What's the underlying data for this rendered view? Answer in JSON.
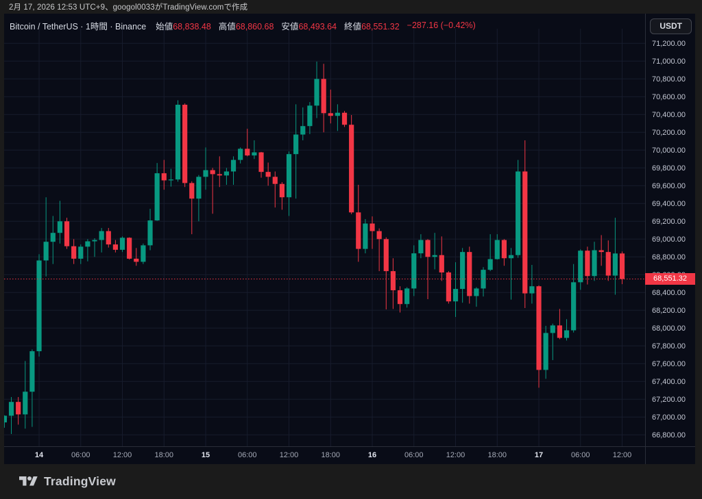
{
  "header": {
    "attribution": "2月 17, 2026 12:53 UTC+9、googol0033がTradingView.comで作成"
  },
  "legend": {
    "title": "Bitcoin / TetherUS · 1時間 · Binance",
    "open_label": "始値",
    "open": "68,838.48",
    "high_label": "高値",
    "high": "68,860.68",
    "low_label": "安値",
    "low": "68,493.64",
    "close_label": "終値",
    "close": "68,551.32",
    "change": "−287.16 (−0.42%)"
  },
  "toolbar": {
    "currency_label": "USDT"
  },
  "price_scale": {
    "last_price_label": "68,551.32"
  },
  "footer": {
    "brand": "TradingView"
  },
  "colors": {
    "up": "#089981",
    "down": "#f23645",
    "chart_bg": "#090c17",
    "outer_bg": "#1b1b1b",
    "grid": "#171c2d",
    "border": "#2a2e39",
    "axis_text": "#c4c8d4",
    "axis_minor": "#a6abb8",
    "axis_major": "#e2e5ee",
    "legend_text": "#d7dbe4"
  },
  "chart_data": {
    "type": "candlestick",
    "symbol": "Bitcoin / TetherUS",
    "exchange": "Binance",
    "interval": "1時間",
    "start_time": "2026-02-13 19:00",
    "interval_hours": 1,
    "last_price": 68551.32,
    "y_axis": {
      "min": 66800,
      "max": 71200,
      "step": 200,
      "decimals": 2
    },
    "x_ticks": [
      {
        "index": 5,
        "label": "14",
        "major": true
      },
      {
        "index": 11,
        "label": "06:00",
        "major": false
      },
      {
        "index": 17,
        "label": "12:00",
        "major": false
      },
      {
        "index": 23,
        "label": "18:00",
        "major": false
      },
      {
        "index": 29,
        "label": "15",
        "major": true
      },
      {
        "index": 35,
        "label": "06:00",
        "major": false
      },
      {
        "index": 41,
        "label": "12:00",
        "major": false
      },
      {
        "index": 47,
        "label": "18:00",
        "major": false
      },
      {
        "index": 53,
        "label": "16",
        "major": true
      },
      {
        "index": 59,
        "label": "06:00",
        "major": false
      },
      {
        "index": 65,
        "label": "12:00",
        "major": false
      },
      {
        "index": 71,
        "label": "18:00",
        "major": false
      },
      {
        "index": 77,
        "label": "17",
        "major": true
      },
      {
        "index": 83,
        "label": "06:00",
        "major": false
      },
      {
        "index": 89,
        "label": "12:00",
        "major": false
      }
    ],
    "candles": [
      [
        66940,
        67020,
        66880,
        67015
      ],
      [
        67015,
        67225,
        66810,
        67170
      ],
      [
        67170,
        67225,
        66915,
        67030
      ],
      [
        67030,
        67630,
        66870,
        67285
      ],
      [
        67285,
        67760,
        66890,
        67740
      ],
      [
        67740,
        68830,
        67680,
        68760
      ],
      [
        68760,
        69470,
        68580,
        68970
      ],
      [
        68970,
        69260,
        68720,
        69070
      ],
      [
        69070,
        69430,
        68950,
        69200
      ],
      [
        69200,
        69240,
        68890,
        68920
      ],
      [
        68920,
        69000,
        68720,
        68780
      ],
      [
        68780,
        68940,
        68720,
        68915
      ],
      [
        68915,
        69000,
        68750,
        68975
      ],
      [
        68975,
        69010,
        68800,
        68990
      ],
      [
        68990,
        69125,
        68850,
        69090
      ],
      [
        69090,
        69125,
        68905,
        68940
      ],
      [
        68940,
        68990,
        68850,
        68880
      ],
      [
        68880,
        69030,
        68855,
        69015
      ],
      [
        69015,
        69020,
        68770,
        68780
      ],
      [
        68780,
        68900,
        68700,
        68745
      ],
      [
        68745,
        68950,
        68720,
        68930
      ],
      [
        68930,
        69340,
        68875,
        69210
      ],
      [
        69210,
        69855,
        69205,
        69740
      ],
      [
        69740,
        69890,
        69555,
        69660
      ],
      [
        69660,
        69790,
        69590,
        69670
      ],
      [
        69670,
        70560,
        69645,
        70510
      ],
      [
        70510,
        70525,
        69585,
        69630
      ],
      [
        69630,
        69650,
        69055,
        69455
      ],
      [
        69455,
        69720,
        69200,
        69700
      ],
      [
        69700,
        70030,
        69555,
        69775
      ],
      [
        69775,
        69800,
        69285,
        69730
      ],
      [
        69730,
        69930,
        69585,
        69715
      ],
      [
        69715,
        69800,
        69610,
        69760
      ],
      [
        69760,
        69930,
        69610,
        69890
      ],
      [
        69890,
        70030,
        69850,
        70015
      ],
      [
        70015,
        70240,
        69930,
        69940
      ],
      [
        69940,
        70110,
        69900,
        69975
      ],
      [
        69975,
        69980,
        69690,
        69755
      ],
      [
        69755,
        69860,
        69600,
        69700
      ],
      [
        69700,
        69760,
        69355,
        69620
      ],
      [
        69620,
        69640,
        69330,
        69470
      ],
      [
        69470,
        69985,
        69260,
        69955
      ],
      [
        69955,
        70515,
        69455,
        70175
      ],
      [
        70175,
        70480,
        70110,
        70270
      ],
      [
        70270,
        70540,
        70180,
        70500
      ],
      [
        70500,
        70995,
        70360,
        70800
      ],
      [
        70800,
        70970,
        70200,
        70415
      ],
      [
        70415,
        70680,
        70300,
        70385
      ],
      [
        70385,
        70515,
        70215,
        70420
      ],
      [
        70420,
        70440,
        70260,
        70285
      ],
      [
        70285,
        70395,
        69280,
        69300
      ],
      [
        69300,
        69610,
        68745,
        68890
      ],
      [
        68890,
        69225,
        68840,
        69175
      ],
      [
        69175,
        69255,
        68890,
        69090
      ],
      [
        69090,
        69120,
        68640,
        69000
      ],
      [
        69000,
        69020,
        68210,
        68640
      ],
      [
        68640,
        68785,
        68215,
        68425
      ],
      [
        68425,
        68470,
        68175,
        68270
      ],
      [
        68270,
        68460,
        68230,
        68445
      ],
      [
        68445,
        68930,
        68360,
        68840
      ],
      [
        68840,
        69055,
        68785,
        68990
      ],
      [
        68990,
        69000,
        68325,
        68800
      ],
      [
        68800,
        69070,
        68660,
        68820
      ],
      [
        68820,
        69030,
        68530,
        68625
      ],
      [
        68625,
        68640,
        68275,
        68300
      ],
      [
        68300,
        68740,
        68125,
        68440
      ],
      [
        68440,
        68900,
        68285,
        68855
      ],
      [
        68855,
        68915,
        68275,
        68360
      ],
      [
        68360,
        68460,
        68240,
        68445
      ],
      [
        68445,
        68685,
        68355,
        68655
      ],
      [
        68655,
        69055,
        68640,
        68775
      ],
      [
        68775,
        69055,
        68770,
        68990
      ],
      [
        68990,
        69000,
        68700,
        68785
      ],
      [
        68785,
        68900,
        68320,
        68820
      ],
      [
        68820,
        69890,
        68790,
        69760
      ],
      [
        69760,
        70110,
        68225,
        68390
      ],
      [
        68390,
        68710,
        68275,
        68470
      ],
      [
        68470,
        68480,
        67330,
        67530
      ],
      [
        67530,
        68025,
        67430,
        67945
      ],
      [
        67945,
        68050,
        67640,
        68030
      ],
      [
        68030,
        68215,
        67875,
        67890
      ],
      [
        67890,
        68100,
        67860,
        67975
      ],
      [
        67975,
        68720,
        67950,
        68515
      ],
      [
        68515,
        68885,
        68430,
        68870
      ],
      [
        68870,
        68915,
        68490,
        68585
      ],
      [
        68585,
        68970,
        68530,
        68875
      ],
      [
        68875,
        69045,
        68700,
        68855
      ],
      [
        68855,
        68985,
        68530,
        68590
      ],
      [
        68590,
        69240,
        68375,
        68838.48
      ],
      [
        68838.48,
        68860.68,
        68493.64,
        68551.32
      ]
    ]
  }
}
